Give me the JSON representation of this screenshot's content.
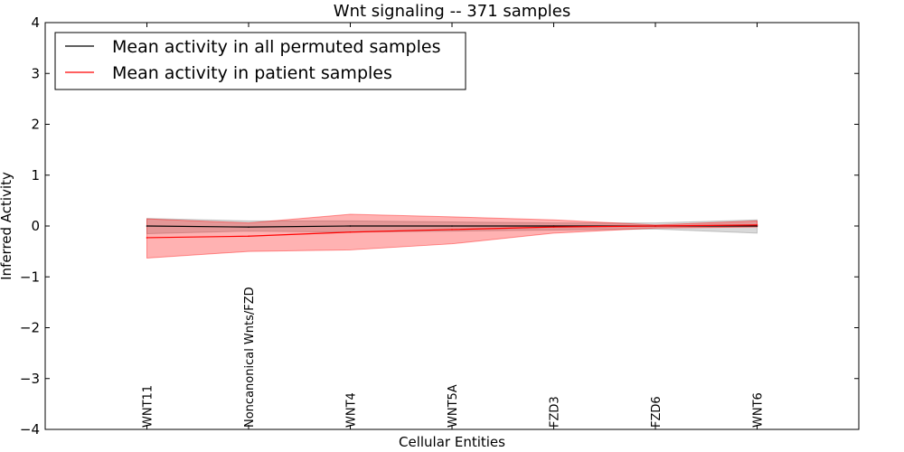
{
  "chart_data": {
    "type": "line",
    "title": "Wnt signaling -- 371 samples",
    "xlabel": "Cellular Entities",
    "ylabel": "Inferred Activity",
    "ylim": [
      -4,
      4
    ],
    "yticks": [
      -4,
      -3,
      -2,
      -1,
      0,
      1,
      2,
      3,
      4
    ],
    "ytick_labels": [
      "−4",
      "−3",
      "−2",
      "−1",
      "0",
      "1",
      "2",
      "3",
      "4"
    ],
    "xlim": [
      -1,
      7
    ],
    "categories": [
      "WNT11",
      "Noncanonical Wnts/FZD",
      "WNT4",
      "WNT5A",
      "FZD3",
      "FZD6",
      "WNT6"
    ],
    "legend_location": "top-left",
    "series": [
      {
        "name": "Mean activity in all permuted samples",
        "color": "#000000",
        "band_color": "#808080",
        "values": [
          0.0,
          -0.02,
          0.0,
          0.0,
          0.0,
          0.0,
          0.0
        ],
        "lower": [
          -0.15,
          -0.1,
          -0.12,
          -0.1,
          -0.08,
          -0.06,
          -0.14
        ],
        "upper": [
          0.15,
          0.1,
          0.1,
          0.08,
          0.06,
          0.06,
          0.12
        ]
      },
      {
        "name": "Mean activity in patient samples",
        "color": "#ff0000",
        "band_color": "#ff0000",
        "values": [
          -0.23,
          -0.2,
          -0.12,
          -0.07,
          -0.02,
          0.0,
          0.02
        ],
        "lower": [
          -0.63,
          -0.5,
          -0.47,
          -0.35,
          -0.14,
          -0.04,
          -0.02
        ],
        "upper": [
          0.14,
          0.06,
          0.23,
          0.18,
          0.12,
          0.02,
          0.1
        ]
      }
    ]
  }
}
